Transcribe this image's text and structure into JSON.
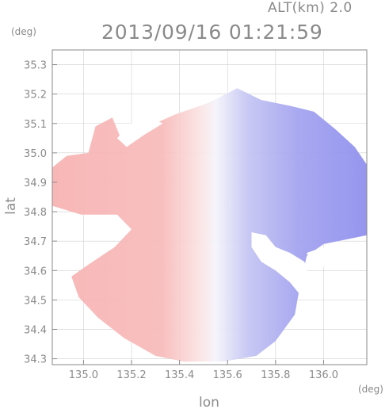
{
  "header": {
    "altitude": "ALT(km) 2.0",
    "timestamp": "2013/09/16 01:21:59"
  },
  "chart_data": {
    "type": "heatmap",
    "title": "2013/09/16 01:21:59",
    "subtitle": "ALT(km) 2.0",
    "xlabel": "lon",
    "ylabel": "lat",
    "x_unit": "(deg)",
    "y_unit": "(deg)",
    "xlim": [
      134.87,
      136.18
    ],
    "ylim": [
      34.28,
      35.35
    ],
    "x_ticks": [
      135.0,
      135.2,
      135.4,
      135.6,
      135.8,
      136.0
    ],
    "x_tick_labels": [
      "135.0",
      "135.2",
      "135.4",
      "135.6",
      "135.8",
      "136.0"
    ],
    "y_ticks": [
      34.3,
      34.4,
      34.5,
      34.6,
      34.7,
      34.8,
      34.9,
      35.0,
      35.1,
      35.2,
      35.3
    ],
    "y_tick_labels": [
      "34.3",
      "34.4",
      "34.5",
      "34.6",
      "34.7",
      "34.8",
      "34.9",
      "35.0",
      "35.1",
      "35.2",
      "35.3"
    ],
    "grid": true,
    "radar_center": [
      135.52,
      34.82
    ],
    "colors": {
      "positive": "#f7b3b3",
      "negative": "#8c8cf0",
      "neutral": "#ffffff",
      "grid": "#cfcfcf",
      "axis": "#8a8a8a"
    }
  }
}
